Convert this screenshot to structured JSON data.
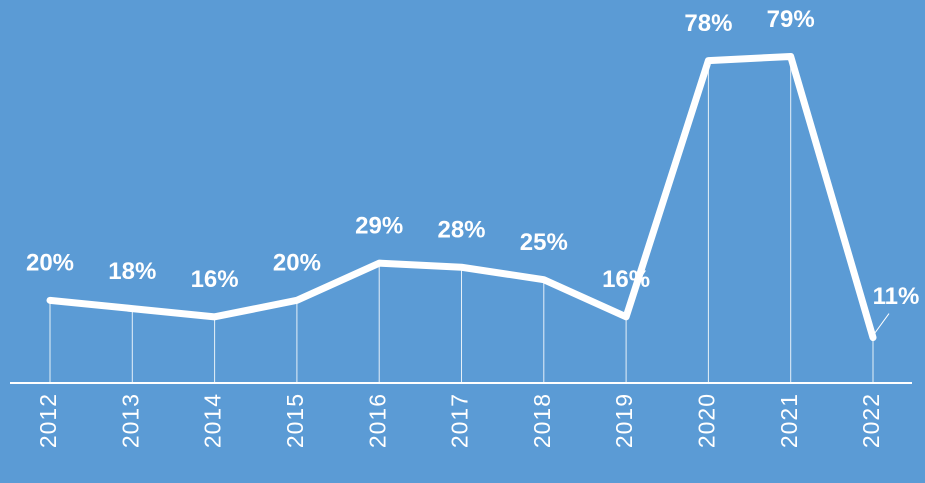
{
  "chart_data": {
    "type": "line",
    "categories": [
      "2012",
      "2013",
      "2014",
      "2015",
      "2016",
      "2017",
      "2018",
      "2019",
      "2020",
      "2021",
      "2022"
    ],
    "values": [
      20,
      18,
      16,
      20,
      29,
      28,
      25,
      16,
      78,
      79,
      11
    ],
    "value_labels": [
      "20%",
      "18%",
      "16%",
      "20%",
      "29%",
      "28%",
      "25%",
      "16%",
      "78%",
      "79%",
      "11%"
    ],
    "color": "#ffffff",
    "background": "#5b9bd5",
    "ylim": [
      0,
      90
    ]
  }
}
